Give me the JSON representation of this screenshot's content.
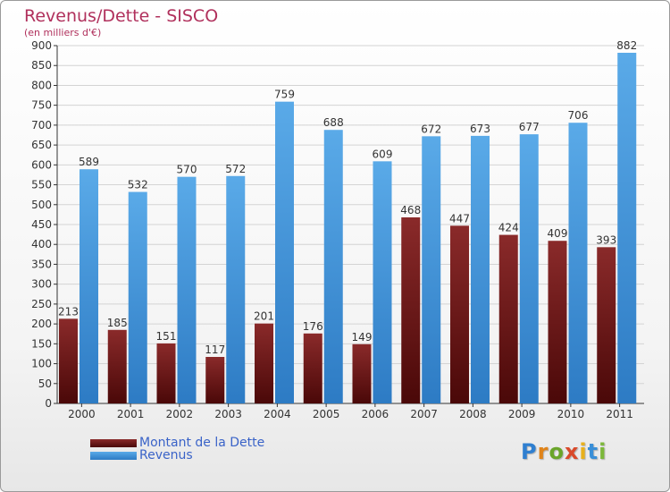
{
  "header": {
    "title": "Revenus/Dette - SISCO",
    "subtitle": "(en milliers d'€)"
  },
  "legend": [
    {
      "label": "Montant de la Dette",
      "color": "#7a1515"
    },
    {
      "label": "Revenus",
      "color": "#4a9ee0"
    }
  ],
  "logo": {
    "text": "Proxiti"
  },
  "chart_data": {
    "type": "bar",
    "categories": [
      "2000",
      "2001",
      "2002",
      "2003",
      "2004",
      "2005",
      "2006",
      "2007",
      "2008",
      "2009",
      "2010",
      "2011"
    ],
    "series": [
      {
        "name": "Montant de la Dette",
        "values": [
          213,
          185,
          151,
          117,
          201,
          176,
          149,
          468,
          447,
          424,
          409,
          393
        ],
        "color": "#7a1515"
      },
      {
        "name": "Revenus",
        "values": [
          589,
          532,
          570,
          572,
          759,
          688,
          609,
          672,
          673,
          677,
          706,
          882
        ],
        "color": "#4a9ee0"
      }
    ],
    "title": "Revenus/Dette - SISCO",
    "subtitle": "(en milliers d'€)",
    "ylim": [
      0,
      900
    ],
    "yticks": [
      0,
      50,
      100,
      150,
      200,
      250,
      300,
      350,
      400,
      450,
      500,
      550,
      600,
      650,
      700,
      750,
      800,
      850,
      900
    ],
    "grid": true,
    "legend_position": "bottom-left"
  }
}
